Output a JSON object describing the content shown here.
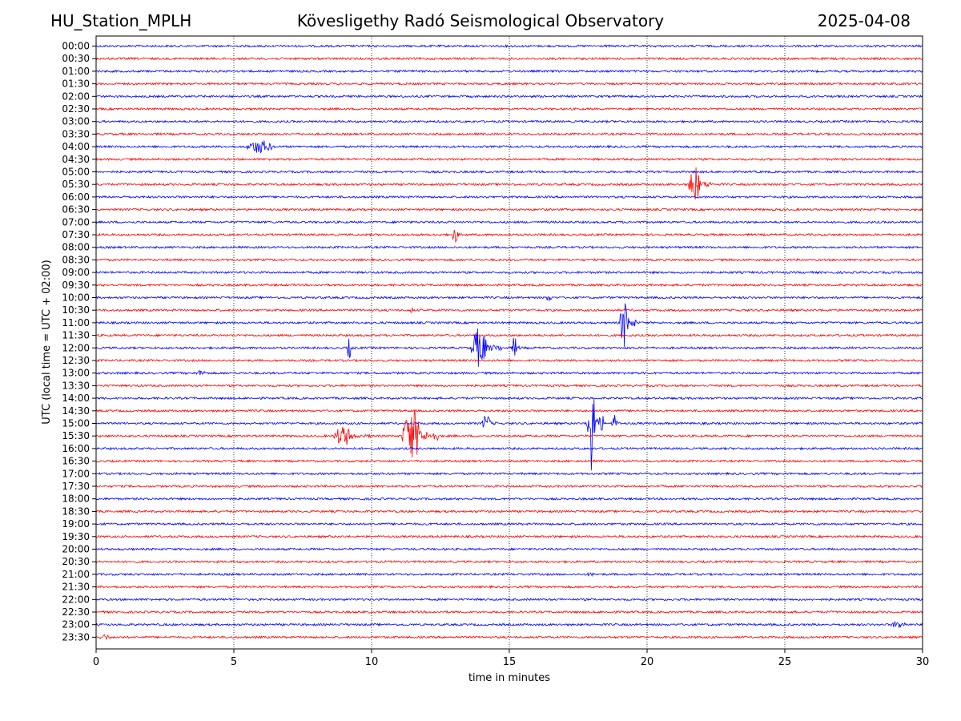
{
  "header": {
    "station": "HU_Station_MPLH",
    "observatory": "Kövesligethy Radó Seismological Observatory",
    "date": "2025-04-08"
  },
  "chart_data": {
    "type": "line",
    "title": "Kövesligethy Radó Seismological Observatory",
    "xlabel": "time in minutes",
    "ylabel": "UTC (local time = UTC + 02:00)",
    "xlim": [
      0,
      30
    ],
    "x_ticks": [
      0,
      5,
      10,
      15,
      20,
      25,
      30
    ],
    "vertical_grid": "dotted",
    "row_labels": [
      "00:00",
      "00:30",
      "01:00",
      "01:30",
      "02:00",
      "02:30",
      "03:00",
      "03:30",
      "04:00",
      "04:30",
      "05:00",
      "05:30",
      "06:00",
      "06:30",
      "07:00",
      "07:30",
      "08:00",
      "08:30",
      "09:00",
      "09:30",
      "10:00",
      "10:30",
      "11:00",
      "11:30",
      "12:00",
      "12:30",
      "13:00",
      "13:30",
      "14:00",
      "14:30",
      "15:00",
      "15:30",
      "16:00",
      "16:30",
      "17:00",
      "17:30",
      "18:00",
      "18:30",
      "19:00",
      "19:30",
      "20:00",
      "20:30",
      "21:00",
      "21:30",
      "22:00",
      "22:30",
      "23:00",
      "23:30"
    ],
    "colors": [
      "#0000ff",
      "#ff0000"
    ],
    "events": [
      {
        "row": "04:00",
        "start_min": 5.4,
        "end_min": 7.3,
        "peak_amplitude": 0.55
      },
      {
        "row": "05:30",
        "start_min": 21.5,
        "end_min": 22.3,
        "peak_amplitude": 1.5
      },
      {
        "row": "07:30",
        "start_min": 12.9,
        "end_min": 13.4,
        "peak_amplitude": 0.65
      },
      {
        "row": "10:00",
        "start_min": 16.3,
        "end_min": 16.8,
        "peak_amplitude": 0.3
      },
      {
        "row": "10:30",
        "start_min": 11.4,
        "end_min": 11.6,
        "peak_amplitude": 0.3
      },
      {
        "row": "11:00",
        "start_min": 19.0,
        "end_min": 19.6,
        "peak_amplitude": 2.0
      },
      {
        "row": "12:00",
        "start_min": 9.1,
        "end_min": 9.4,
        "peak_amplitude": 0.85
      },
      {
        "row": "12:00",
        "start_min": 13.6,
        "end_min": 14.7,
        "peak_amplitude": 1.6
      },
      {
        "row": "12:00",
        "start_min": 15.1,
        "end_min": 15.4,
        "peak_amplitude": 1.0
      },
      {
        "row": "13:00",
        "start_min": 3.6,
        "end_min": 4.4,
        "peak_amplitude": 0.25
      },
      {
        "row": "15:00",
        "start_min": 14.0,
        "end_min": 14.6,
        "peak_amplitude": 0.75
      },
      {
        "row": "15:00",
        "start_min": 17.8,
        "end_min": 18.4,
        "peak_amplitude": 4.0
      },
      {
        "row": "15:00",
        "start_min": 18.7,
        "end_min": 19.1,
        "peak_amplitude": 0.7
      },
      {
        "row": "15:30",
        "start_min": 8.6,
        "end_min": 10.0,
        "peak_amplitude": 0.8
      },
      {
        "row": "15:30",
        "start_min": 11.1,
        "end_min": 12.4,
        "peak_amplitude": 2.2
      },
      {
        "row": "21:00",
        "start_min": 17.8,
        "end_min": 18.3,
        "peak_amplitude": 0.2
      },
      {
        "row": "23:00",
        "start_min": 28.8,
        "end_min": 30.0,
        "peak_amplitude": 0.3
      },
      {
        "row": "23:30",
        "start_min": 0.0,
        "end_min": 1.0,
        "peak_amplitude": 0.25
      }
    ]
  }
}
